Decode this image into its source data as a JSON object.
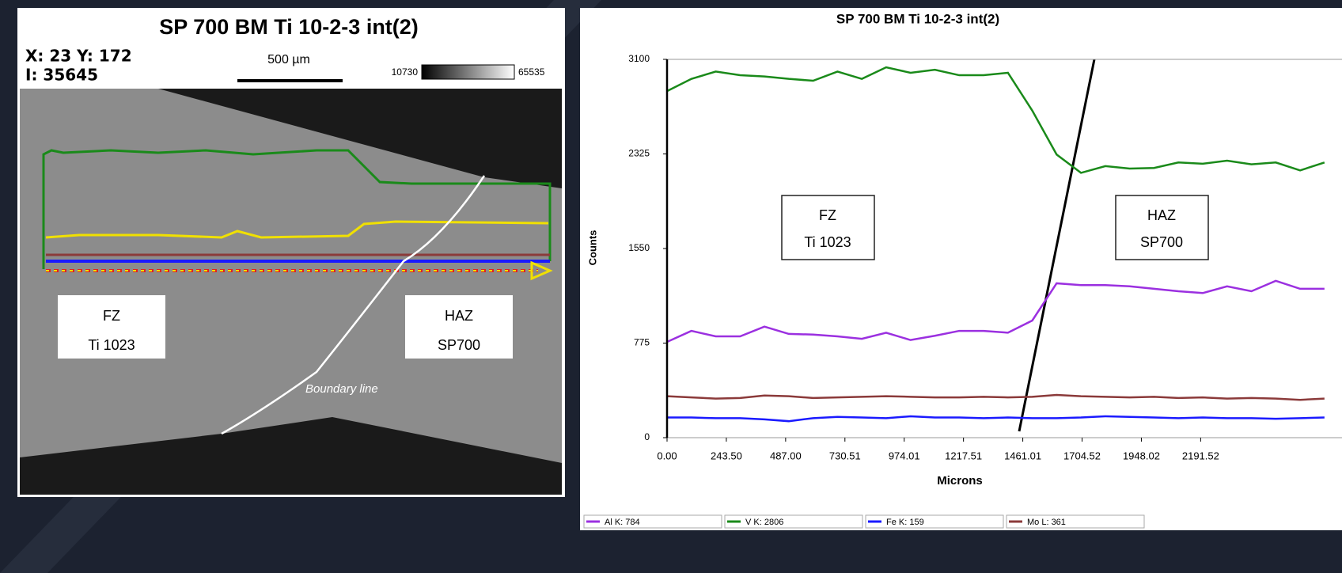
{
  "image_panel": {
    "title": "SP 700 BM Ti 10-2-3 int(2)",
    "cursor": [
      "X: 23 Y: 172",
      "I: 35645"
    ],
    "scale_bar": "500 µm",
    "intensity_min": "10730",
    "intensity_max": "65535",
    "labels": [
      [
        "FZ",
        "Ti 1023"
      ],
      [
        "HAZ",
        "SP700"
      ]
    ],
    "boundary_label": "Boundary line"
  },
  "chart_data": {
    "type": "line",
    "title": "SP 700 BM Ti 10-2-3 int(2)",
    "x_label": "Microns",
    "y_label": "Counts",
    "x": [
      0,
      100,
      200,
      300,
      400,
      500,
      600,
      700,
      800,
      900,
      1000,
      1100,
      1200,
      1300,
      1400,
      1500,
      1600,
      1700,
      1800,
      1900,
      2000,
      2100,
      2200,
      2300,
      2400,
      2500,
      2600,
      2700
    ],
    "series": [
      {
        "name": "Al K: 784",
        "color": "#9b30e0",
        "values": [
          785,
          875,
          830,
          830,
          910,
          850,
          845,
          830,
          810,
          860,
          800,
          835,
          875,
          875,
          860,
          960,
          1265,
          1250,
          1250,
          1240,
          1220,
          1200,
          1185,
          1240,
          1200,
          1285,
          1220,
          1220
        ]
      },
      {
        "name": "V K: 2806",
        "color": "#1a8a1a",
        "values": [
          2840,
          2940,
          3000,
          2970,
          2960,
          2940,
          2925,
          3000,
          2940,
          3035,
          2990,
          3015,
          2970,
          2970,
          2990,
          2680,
          2320,
          2170,
          2225,
          2205,
          2210,
          2255,
          2245,
          2270,
          2240,
          2255,
          2190,
          2255
        ]
      },
      {
        "name": "Fe K: 159",
        "color": "#1a1aff",
        "values": [
          165,
          165,
          160,
          160,
          150,
          135,
          160,
          170,
          165,
          160,
          175,
          165,
          165,
          160,
          165,
          160,
          160,
          165,
          175,
          170,
          165,
          160,
          165,
          160,
          160,
          155,
          160,
          165
        ]
      },
      {
        "name": "Mo L: 361",
        "color": "#8b3a3a",
        "values": [
          340,
          330,
          320,
          325,
          345,
          340,
          325,
          330,
          335,
          340,
          335,
          330,
          330,
          335,
          330,
          335,
          350,
          340,
          335,
          330,
          335,
          325,
          330,
          320,
          325,
          320,
          310,
          320
        ]
      }
    ],
    "xlim": [
      0,
      2772
    ],
    "ylim": [
      0,
      3100
    ],
    "yticks": [
      0,
      775,
      1550,
      2325,
      3100
    ],
    "xticks": [
      {
        "value": 0,
        "label": "0.00"
      },
      {
        "value": 243.5,
        "label": "243.50"
      },
      {
        "value": 487,
        "label": "487.00"
      },
      {
        "value": 730.51,
        "label": "730.51"
      },
      {
        "value": 974.01,
        "label": "974.01"
      },
      {
        "value": 1217.51,
        "label": "1217.51"
      },
      {
        "value": 1461.01,
        "label": "1461.01"
      },
      {
        "value": 1704.52,
        "label": "1704.52"
      },
      {
        "value": 1948.02,
        "label": "1948.02"
      },
      {
        "value": 2191.52,
        "label": "2191.52"
      }
    ],
    "annotations": [
      [
        "FZ",
        "Ti 1023"
      ],
      [
        "HAZ",
        "SP700"
      ]
    ]
  }
}
